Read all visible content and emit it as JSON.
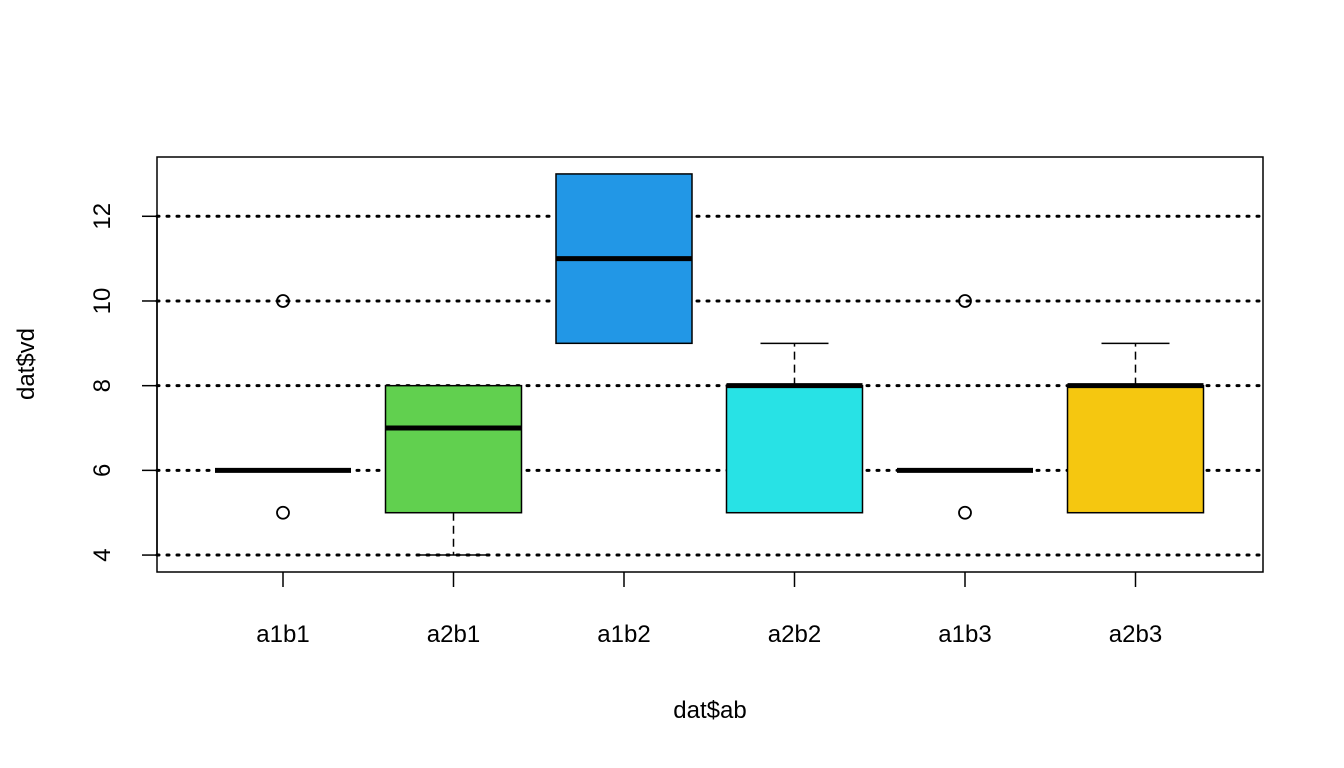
{
  "chart_data": {
    "type": "boxplot",
    "xlabel": "dat$ab",
    "ylabel": "dat$vd",
    "ylim": [
      3.6,
      13.4
    ],
    "y_ticks": [
      4,
      6,
      8,
      10,
      12
    ],
    "grid": {
      "on": true,
      "style": "dotted",
      "at": [
        4,
        6,
        8,
        10,
        12
      ]
    },
    "categories": [
      "a1b1",
      "a2b1",
      "a1b2",
      "a2b2",
      "a1b3",
      "a2b3"
    ],
    "boxes": [
      {
        "label": "a1b1",
        "whisker_low": 6,
        "q1": 6,
        "median": 6,
        "q3": 6,
        "whisker_high": 6,
        "outliers": [
          5,
          10
        ],
        "color": "#ffffff"
      },
      {
        "label": "a2b1",
        "whisker_low": 4,
        "q1": 5,
        "median": 7,
        "q3": 8,
        "whisker_high": 8,
        "outliers": [],
        "color": "#61d04f"
      },
      {
        "label": "a1b2",
        "whisker_low": 9,
        "q1": 9,
        "median": 11,
        "q3": 13,
        "whisker_high": 13,
        "outliers": [],
        "color": "#2297e6"
      },
      {
        "label": "a2b2",
        "whisker_low": 5,
        "q1": 5,
        "median": 8,
        "q3": 8,
        "whisker_high": 9,
        "outliers": [],
        "color": "#28e2e5"
      },
      {
        "label": "a1b3",
        "whisker_low": 6,
        "q1": 6,
        "median": 6,
        "q3": 6,
        "whisker_high": 6,
        "outliers": [
          5,
          10
        ],
        "color": "#ffffff"
      },
      {
        "label": "a2b3",
        "whisker_low": 5,
        "q1": 5,
        "median": 8,
        "q3": 8,
        "whisker_high": 9,
        "outliers": [],
        "color": "#f5c710"
      }
    ]
  }
}
